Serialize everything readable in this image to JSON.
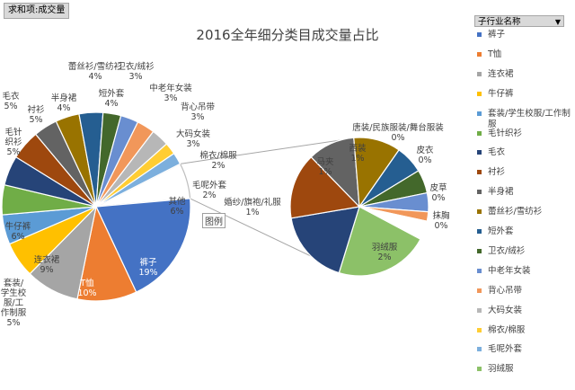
{
  "field_button": "求和项:成交量",
  "legend_filter": {
    "label": "子行业名称",
    "arrow": "▼"
  },
  "legend_button": "图例",
  "chart_data": {
    "type": "pie",
    "title": "2016全年细分类目成交量占比",
    "subtype": "pie-of-pie",
    "main_pie": [
      {
        "label": "裤子",
        "value": "19%",
        "color": "#4472c4"
      },
      {
        "label": "T恤",
        "value": "10%",
        "color": "#ed7d31"
      },
      {
        "label": "连衣裙",
        "value": "9%",
        "color": "#a5a5a5"
      },
      {
        "label": "牛仔裤",
        "value": "6%",
        "color": "#ffc000"
      },
      {
        "label": "套装/学生校服/工作制服",
        "value": "5%",
        "color": "#5b9bd5"
      },
      {
        "label": "毛针织衫",
        "value": "5%",
        "color": "#70ad47"
      },
      {
        "label": "毛衣",
        "value": "5%",
        "color": "#264478"
      },
      {
        "label": "衬衫",
        "value": "5%",
        "color": "#9e480e"
      },
      {
        "label": "半身裙",
        "value": "4%",
        "color": "#636363"
      },
      {
        "label": "蕾丝衫/雪纺衫",
        "value": "4%",
        "color": "#997300"
      },
      {
        "label": "短外套",
        "value": "4%",
        "color": "#255e91"
      },
      {
        "label": "卫衣/绒衫",
        "value": "3%",
        "color": "#43682b"
      },
      {
        "label": "中老年女装",
        "value": "3%",
        "color": "#698ed0"
      },
      {
        "label": "背心吊带",
        "value": "3%",
        "color": "#f1975a"
      },
      {
        "label": "大码女装",
        "value": "3%",
        "color": "#b7b7b7"
      },
      {
        "label": "棉衣/棉服",
        "value": "2%",
        "color": "#ffcd33"
      },
      {
        "label": "毛呢外套",
        "value": "2%",
        "color": "#7cafdd"
      },
      {
        "label": "其他",
        "value": "6%",
        "color": "#ffffff"
      }
    ],
    "secondary_pie": [
      {
        "label": "羽绒服",
        "value": "2%",
        "color": "#8cc168"
      },
      {
        "label": "",
        "value": "",
        "color": "#264478"
      },
      {
        "label": "",
        "value": "",
        "color": "#9e480e"
      },
      {
        "label": "马夹",
        "value": "1%",
        "color": "#636363"
      },
      {
        "label": "西装",
        "value": "1%",
        "color": "#997300"
      },
      {
        "label": "唐装/民族服装/舞台服装",
        "value": "0%",
        "color": "#255e91"
      },
      {
        "label": "皮衣",
        "value": "0%",
        "color": "#43682b"
      },
      {
        "label": "皮草",
        "value": "0%",
        "color": "#698ed0"
      },
      {
        "label": "抹胸",
        "value": "0%",
        "color": "#f1975a"
      },
      {
        "label": "婚纱/旗袍/礼服",
        "value": "1%",
        "color": "#ffffff"
      }
    ],
    "legend": [
      {
        "label": "裤子",
        "color": "#4472c4"
      },
      {
        "label": "T恤",
        "color": "#ed7d31"
      },
      {
        "label": "连衣裙",
        "color": "#a5a5a5"
      },
      {
        "label": "牛仔裤",
        "color": "#ffc000"
      },
      {
        "label": "套装/学生校服/工作制服",
        "color": "#5b9bd5"
      },
      {
        "label": "毛针织衫",
        "color": "#70ad47"
      },
      {
        "label": "毛衣",
        "color": "#264478"
      },
      {
        "label": "衬衫",
        "color": "#9e480e"
      },
      {
        "label": "半身裙",
        "color": "#636363"
      },
      {
        "label": "蕾丝衫/雪纺衫",
        "color": "#997300"
      },
      {
        "label": "短外套",
        "color": "#255e91"
      },
      {
        "label": "卫衣/绒衫",
        "color": "#43682b"
      },
      {
        "label": "中老年女装",
        "color": "#698ed0"
      },
      {
        "label": "背心吊带",
        "color": "#f1975a"
      },
      {
        "label": "大码女装",
        "color": "#b7b7b7"
      },
      {
        "label": "棉衣/棉服",
        "color": "#ffcd33"
      },
      {
        "label": "毛呢外套",
        "color": "#7cafdd"
      },
      {
        "label": "羽绒服",
        "color": "#8cc168"
      }
    ]
  }
}
